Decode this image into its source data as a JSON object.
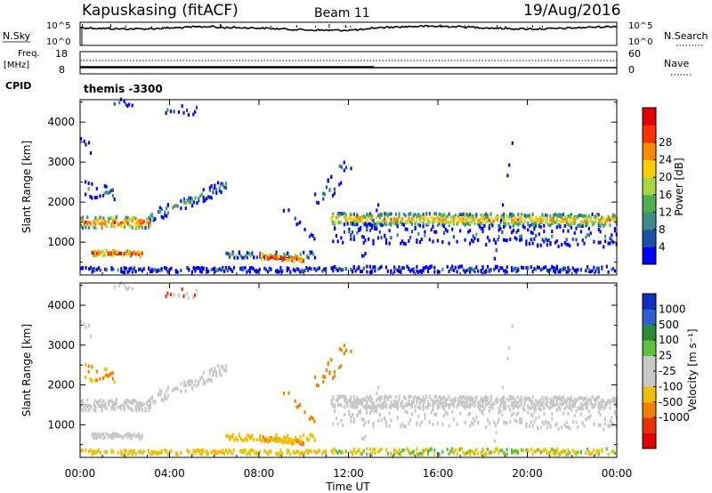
{
  "header": {
    "station": "Kapuskasing (fitACF)",
    "beam": "Beam 11",
    "date": "19/Aug/2016"
  },
  "noise_panel": {
    "left_label": "N.Sky",
    "left_ticks": [
      "10^5",
      "10^0"
    ],
    "right_label": "N.Search",
    "right_ticks": [
      "10^5",
      "10^0"
    ]
  },
  "freq_panel": {
    "left_label_1": "Freq.",
    "left_label_2": "[MHz]",
    "left_ticks": [
      "18",
      "8"
    ],
    "right_label": "Nave",
    "right_ticks": [
      "60",
      "0"
    ]
  },
  "cpid": {
    "label": "CPID",
    "value": "themis -3300"
  },
  "chart_data": [
    {
      "type": "heatmap",
      "name": "power",
      "ylabel": "Slant Range [km]",
      "yticks": [
        1000,
        2000,
        3000,
        4000
      ],
      "ylim": [
        180,
        4560
      ],
      "colorbar_label": "Power [dB]",
      "colorbar_ticks": [
        "4",
        "8",
        "12",
        "16",
        "20",
        "24",
        "28"
      ],
      "colors": [
        "#0000ff",
        "#1c4fa8",
        "#3f8a8a",
        "#4fae4f",
        "#a8d640",
        "#ffcf00",
        "#ff8a00",
        "#ff3000",
        "#e00000"
      ]
    },
    {
      "type": "heatmap",
      "name": "velocity",
      "ylabel": "Slant Range [km]",
      "yticks": [
        1000,
        2000,
        3000,
        4000
      ],
      "ylim": [
        180,
        4560
      ],
      "colorbar_label": "Velocity [m s⁻¹]",
      "colorbar_ticks": [
        "1000",
        "500",
        "100",
        "25",
        "-25",
        "-100",
        "-500",
        "-1000"
      ],
      "colors": [
        "#1030c0",
        "#3060d0",
        "#2c8a3a",
        "#60c040",
        "#c8c8c4",
        "#c8c8c4",
        "#f0c000",
        "#f08000",
        "#e83000",
        "#e00000"
      ],
      "xlabel": "Time UT",
      "xticks": [
        "00:00",
        "04:00",
        "08:00",
        "12:00",
        "16:00",
        "20:00",
        "00:00"
      ]
    }
  ]
}
